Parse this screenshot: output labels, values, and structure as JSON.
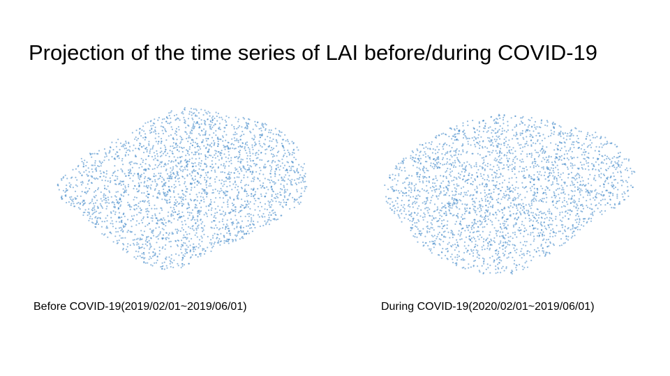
{
  "page": {
    "title": "Projection of the time series of LAI before/during COVID-19"
  },
  "chart_data": [
    {
      "type": "scatter",
      "caption": "Before COVID-19(2019/02/01~2019/06/01)",
      "point_color": "#3d85c6",
      "point_count": 2600,
      "seed": 11,
      "xlim": [
        -1,
        1
      ],
      "ylim": [
        -1,
        1
      ],
      "axes_visible": false,
      "cloud_polygon": [
        [
          -0.92,
          0.05
        ],
        [
          -0.85,
          0.2
        ],
        [
          -0.72,
          0.38
        ],
        [
          -0.55,
          0.52
        ],
        [
          -0.38,
          0.62
        ],
        [
          -0.2,
          0.82
        ],
        [
          0.0,
          0.93
        ],
        [
          0.15,
          0.9
        ],
        [
          0.35,
          0.84
        ],
        [
          0.55,
          0.78
        ],
        [
          0.72,
          0.68
        ],
        [
          0.85,
          0.5
        ],
        [
          0.9,
          0.3
        ],
        [
          0.92,
          0.08
        ],
        [
          0.88,
          -0.12
        ],
        [
          0.72,
          -0.3
        ],
        [
          0.55,
          -0.45
        ],
        [
          0.35,
          -0.58
        ],
        [
          0.15,
          -0.72
        ],
        [
          -0.05,
          -0.88
        ],
        [
          -0.25,
          -0.82
        ],
        [
          -0.42,
          -0.65
        ],
        [
          -0.6,
          -0.45
        ],
        [
          -0.75,
          -0.22
        ],
        [
          -0.88,
          -0.08
        ]
      ]
    },
    {
      "type": "scatter",
      "caption": "During COVID-19(2020/02/01~2019/06/01)",
      "point_color": "#3d85c6",
      "point_count": 2600,
      "seed": 23,
      "xlim": [
        -1,
        1
      ],
      "ylim": [
        -1,
        1
      ],
      "axes_visible": false,
      "cloud_polygon": [
        [
          -0.92,
          0.1
        ],
        [
          -0.85,
          0.32
        ],
        [
          -0.7,
          0.55
        ],
        [
          -0.5,
          0.72
        ],
        [
          -0.3,
          0.85
        ],
        [
          -0.1,
          0.92
        ],
        [
          0.1,
          0.9
        ],
        [
          0.3,
          0.86
        ],
        [
          0.5,
          0.78
        ],
        [
          0.7,
          0.68
        ],
        [
          0.85,
          0.5
        ],
        [
          0.92,
          0.25
        ],
        [
          0.9,
          0.0
        ],
        [
          0.78,
          -0.15
        ],
        [
          0.62,
          -0.28
        ],
        [
          0.45,
          -0.5
        ],
        [
          0.25,
          -0.72
        ],
        [
          0.05,
          -0.9
        ],
        [
          -0.2,
          -0.9
        ],
        [
          -0.45,
          -0.78
        ],
        [
          -0.65,
          -0.58
        ],
        [
          -0.8,
          -0.3
        ],
        [
          -0.9,
          -0.1
        ]
      ]
    }
  ]
}
